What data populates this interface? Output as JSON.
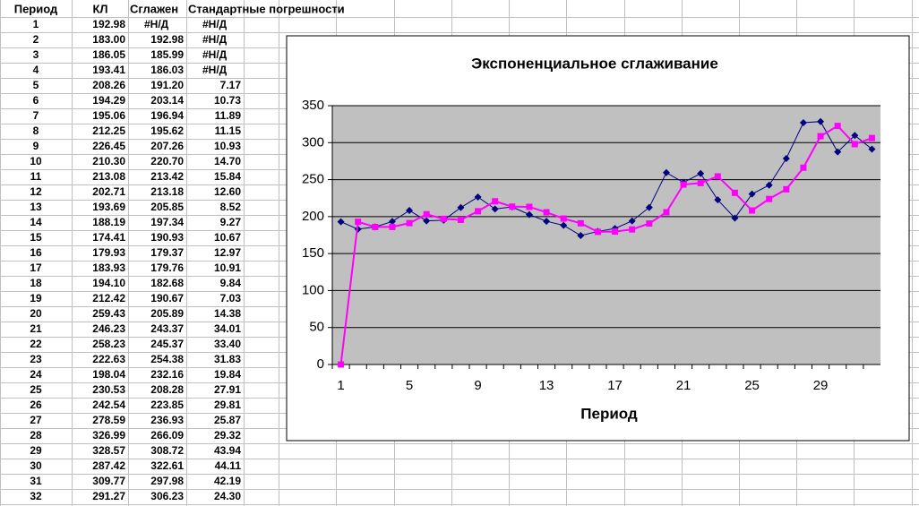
{
  "table": {
    "header": [
      "Период",
      "КЛ",
      "Сглажен",
      "Стандартные погрешности"
    ],
    "rows": [
      [
        "1",
        "192.98",
        "#Н/Д",
        "#Н/Д"
      ],
      [
        "2",
        "183.00",
        "192.98",
        "#Н/Д"
      ],
      [
        "3",
        "186.05",
        "185.99",
        "#Н/Д"
      ],
      [
        "4",
        "193.41",
        "186.03",
        "#Н/Д"
      ],
      [
        "5",
        "208.26",
        "191.20",
        "7.17"
      ],
      [
        "6",
        "194.29",
        "203.14",
        "10.73"
      ],
      [
        "7",
        "195.06",
        "196.94",
        "11.89"
      ],
      [
        "8",
        "212.25",
        "195.62",
        "11.15"
      ],
      [
        "9",
        "226.45",
        "207.26",
        "10.93"
      ],
      [
        "10",
        "210.30",
        "220.70",
        "14.70"
      ],
      [
        "11",
        "213.08",
        "213.42",
        "15.84"
      ],
      [
        "12",
        "202.71",
        "213.18",
        "12.60"
      ],
      [
        "13",
        "193.69",
        "205.85",
        "8.52"
      ],
      [
        "14",
        "188.19",
        "197.34",
        "9.27"
      ],
      [
        "15",
        "174.41",
        "190.93",
        "10.67"
      ],
      [
        "16",
        "179.93",
        "179.37",
        "12.97"
      ],
      [
        "17",
        "183.93",
        "179.76",
        "10.91"
      ],
      [
        "18",
        "194.10",
        "182.68",
        "9.84"
      ],
      [
        "19",
        "212.42",
        "190.67",
        "7.03"
      ],
      [
        "20",
        "259.43",
        "205.89",
        "14.38"
      ],
      [
        "21",
        "246.23",
        "243.37",
        "34.01"
      ],
      [
        "22",
        "258.23",
        "245.37",
        "33.40"
      ],
      [
        "23",
        "222.63",
        "254.38",
        "31.83"
      ],
      [
        "24",
        "198.04",
        "232.16",
        "19.84"
      ],
      [
        "25",
        "230.53",
        "208.28",
        "27.91"
      ],
      [
        "26",
        "242.54",
        "223.85",
        "29.81"
      ],
      [
        "27",
        "278.59",
        "236.93",
        "25.87"
      ],
      [
        "28",
        "326.99",
        "266.09",
        "29.32"
      ],
      [
        "29",
        "328.57",
        "308.72",
        "43.94"
      ],
      [
        "30",
        "287.42",
        "322.61",
        "44.11"
      ],
      [
        "31",
        "309.77",
        "297.98",
        "42.19"
      ],
      [
        "32",
        "291.27",
        "306.23",
        "24.30"
      ]
    ]
  },
  "chart_data": {
    "type": "line",
    "title": "Экспоненциальное сглаживание",
    "x_label": "Период",
    "categories": [
      1,
      null,
      null,
      null,
      5,
      null,
      null,
      null,
      9,
      null,
      null,
      null,
      13,
      null,
      null,
      null,
      17,
      null,
      null,
      null,
      21,
      null,
      null,
      null,
      25,
      null,
      null,
      null,
      29,
      null,
      null,
      null
    ],
    "series": [
      {
        "color": "#000080",
        "marker": "diamond",
        "values": [
          192.98,
          183.0,
          186.05,
          193.41,
          208.26,
          194.29,
          195.06,
          212.25,
          226.45,
          210.3,
          213.08,
          202.71,
          193.69,
          188.19,
          174.41,
          179.93,
          183.93,
          194.1,
          212.42,
          259.43,
          246.23,
          258.23,
          222.63,
          198.04,
          230.53,
          242.54,
          278.59,
          326.99,
          328.57,
          287.42,
          309.77,
          291.27
        ]
      },
      {
        "color": "#ff00ff",
        "marker": "square",
        "values": [
          0,
          192.98,
          185.99,
          186.03,
          191.2,
          203.14,
          196.94,
          195.62,
          207.26,
          220.7,
          213.42,
          213.18,
          205.85,
          197.34,
          190.93,
          179.37,
          179.76,
          182.68,
          190.67,
          205.89,
          243.37,
          245.37,
          254.38,
          232.16,
          208.28,
          223.85,
          236.93,
          266.09,
          308.72,
          322.61,
          297.98,
          306.23
        ]
      }
    ],
    "ylim": [
      0,
      350
    ],
    "yticks": [
      0,
      50,
      100,
      150,
      200,
      250,
      300,
      350
    ],
    "grid": true
  }
}
